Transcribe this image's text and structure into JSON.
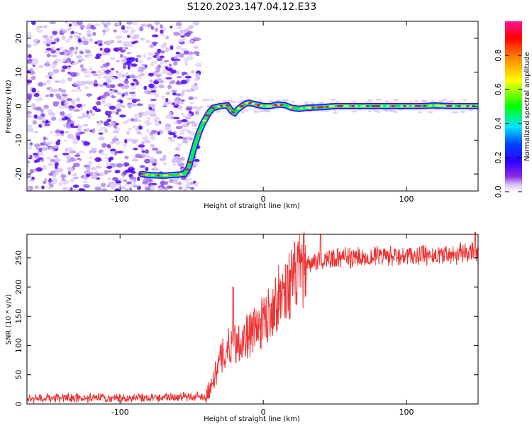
{
  "title": "S120.2023.147.04.12.E33",
  "chart_data": [
    {
      "type": "heatmap",
      "name": "spectrogram",
      "xlabel": "Height of straight line (km)",
      "ylabel": "Frequency (Hz)",
      "xlim": [
        -165,
        150
      ],
      "ylim": [
        -25,
        25
      ],
      "xticks": [
        -100,
        0,
        100
      ],
      "yticks": [
        -20,
        -10,
        0,
        10,
        20
      ],
      "grid": false,
      "ridge": {
        "x": [
          -85,
          -80,
          -70,
          -60,
          -55,
          -52,
          -50,
          -48,
          -45,
          -42,
          -38,
          -35,
          -30,
          -25,
          -22,
          -20,
          -18,
          -15,
          -12,
          -10,
          -5,
          0,
          5,
          10,
          15,
          20,
          25,
          30,
          40,
          50,
          60,
          70,
          80,
          90,
          100,
          110,
          120,
          130,
          140,
          150
        ],
        "y": [
          -20,
          -20.3,
          -20.5,
          -20.2,
          -20,
          -18,
          -15,
          -12,
          -8,
          -5,
          -2,
          -0.5,
          0,
          0.2,
          -1.5,
          -2,
          -1,
          0,
          0.8,
          1,
          0.5,
          0,
          0,
          0.5,
          0.3,
          -0.5,
          -0.8,
          -0.5,
          -0.3,
          0,
          0,
          0,
          0,
          0,
          0,
          0,
          0.2,
          0,
          0,
          0
        ]
      },
      "colorbar": {
        "label": "Normalized spectral amplitude",
        "ticks": [
          0.0,
          0.2,
          0.4,
          0.6,
          0.8
        ],
        "range": [
          0,
          1
        ]
      }
    },
    {
      "type": "line",
      "name": "snr",
      "xlabel": "Height of straight line (km)",
      "ylabel": "SNR (10 * v/v)",
      "xlim": [
        -165,
        150
      ],
      "ylim": [
        0,
        290
      ],
      "xticks": [
        -100,
        0,
        100
      ],
      "yticks": [
        0,
        50,
        100,
        150,
        200,
        250
      ],
      "grid": false,
      "color": "#ee3333",
      "trend": {
        "x": [
          -165,
          -100,
          -60,
          -40,
          -35,
          -30,
          -25,
          -20,
          -15,
          -10,
          -5,
          0,
          5,
          10,
          15,
          20,
          25,
          30,
          40,
          50,
          60,
          80,
          100,
          120,
          140,
          150
        ],
        "y": [
          10,
          10,
          12,
          13,
          40,
          75,
          95,
          105,
          110,
          118,
          128,
          140,
          160,
          180,
          195,
          210,
          225,
          235,
          245,
          248,
          250,
          252,
          252,
          255,
          258,
          258
        ]
      },
      "peaks": [
        {
          "x": -21,
          "y": 200
        },
        {
          "x": 40,
          "y": 290
        },
        {
          "x": 148,
          "y": 293
        }
      ]
    }
  ],
  "colors": {
    "line": "#ee3333",
    "axis": "#000000",
    "colormap": [
      "#ffffff",
      "#d9c6f7",
      "#8a2be2",
      "#4b00ff",
      "#0000ff",
      "#00e5ff",
      "#00ff00",
      "#ffff00",
      "#ff8c00",
      "#ff0000",
      "#ff1493"
    ]
  }
}
